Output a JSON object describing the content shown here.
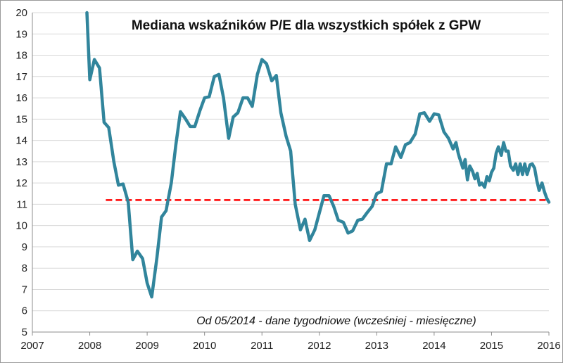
{
  "chart_data": {
    "type": "line",
    "title": "Mediana wskaźników P/E dla wszystkich spółek z GPW",
    "annotation": "Od 05/2014 - dane tygodniowe (wcześniej - miesięczne)",
    "xlabel": "",
    "ylabel": "",
    "xlim": [
      2007,
      2016
    ],
    "ylim": [
      5,
      20
    ],
    "x_ticks": [
      "2007",
      "2008",
      "2009",
      "2010",
      "2011",
      "2012",
      "2013",
      "2014",
      "2015",
      "2016"
    ],
    "y_ticks": [
      "5",
      "6",
      "7",
      "8",
      "9",
      "10",
      "11",
      "12",
      "13",
      "14",
      "15",
      "16",
      "17",
      "18",
      "19",
      "20"
    ],
    "grid": "horizontal",
    "colors": {
      "series": "#31859C",
      "reference": "#FF0000",
      "grid": "#D9D9D9"
    },
    "series": [
      {
        "x": [
          2007.95,
          2008.0,
          2008.08,
          2008.17,
          2008.25,
          2008.33,
          2008.42,
          2008.5,
          2008.58,
          2008.67,
          2008.75,
          2008.83,
          2008.92,
          2009.0,
          2009.08,
          2009.17,
          2009.25,
          2009.33,
          2009.42,
          2009.5,
          2009.58,
          2009.67,
          2009.75,
          2009.83,
          2009.92,
          2010.0,
          2010.08,
          2010.17,
          2010.25,
          2010.33,
          2010.42,
          2010.5,
          2010.58,
          2010.67,
          2010.75,
          2010.83,
          2010.92,
          2011.0,
          2011.08,
          2011.17,
          2011.25,
          2011.33,
          2011.42,
          2011.5,
          2011.58,
          2011.67,
          2011.75,
          2011.83,
          2011.92,
          2012.0,
          2012.08,
          2012.17,
          2012.25,
          2012.33,
          2012.42,
          2012.5,
          2012.58,
          2012.67,
          2012.75,
          2012.83,
          2012.92,
          2013.0,
          2013.08,
          2013.17,
          2013.25,
          2013.33,
          2013.42,
          2013.5,
          2013.58,
          2013.67,
          2013.75,
          2013.83,
          2013.92,
          2014.0,
          2014.08,
          2014.17,
          2014.25,
          2014.33,
          2014.38,
          2014.42,
          2014.44,
          2014.46,
          2014.5,
          2014.54,
          2014.58,
          2014.62,
          2014.67,
          2014.71,
          2014.75,
          2014.79,
          2014.83,
          2014.88,
          2014.92,
          2014.96,
          2015.0,
          2015.04,
          2015.08,
          2015.12,
          2015.17,
          2015.21,
          2015.25,
          2015.29,
          2015.33,
          2015.38,
          2015.42,
          2015.46,
          2015.5,
          2015.54,
          2015.58,
          2015.62,
          2015.67,
          2015.71,
          2015.75,
          2015.79,
          2015.83,
          2015.88,
          2015.92,
          2015.96,
          2016.0
        ],
        "values": [
          20.0,
          16.85,
          17.8,
          17.4,
          14.85,
          14.6,
          13.0,
          11.9,
          11.95,
          11.1,
          8.4,
          8.8,
          8.45,
          7.3,
          6.65,
          8.5,
          10.4,
          10.7,
          12.0,
          13.8,
          15.35,
          15.0,
          14.65,
          14.65,
          15.4,
          16.0,
          16.05,
          17.0,
          17.1,
          16.0,
          14.1,
          15.1,
          15.3,
          16.0,
          16.0,
          15.6,
          17.1,
          17.8,
          17.6,
          16.8,
          17.05,
          15.3,
          14.2,
          13.5,
          11.0,
          9.8,
          10.3,
          9.3,
          9.8,
          10.6,
          11.4,
          11.4,
          10.9,
          10.25,
          10.15,
          9.65,
          9.75,
          10.25,
          10.3,
          10.6,
          10.9,
          11.5,
          11.6,
          12.9,
          12.9,
          13.7,
          13.2,
          13.8,
          13.9,
          14.3,
          15.25,
          15.3,
          14.9,
          15.25,
          15.2,
          14.4,
          14.1,
          13.6,
          13.9,
          13.4,
          13.2,
          13.05,
          12.7,
          13.1,
          12.15,
          12.8,
          12.55,
          12.2,
          12.45,
          11.9,
          12.0,
          11.8,
          12.3,
          12.1,
          12.5,
          12.7,
          13.4,
          13.7,
          13.3,
          13.9,
          13.5,
          13.5,
          12.8,
          12.6,
          12.9,
          12.4,
          12.9,
          12.4,
          12.9,
          12.4,
          12.85,
          12.9,
          12.7,
          12.1,
          11.65,
          12.0,
          11.6,
          11.3,
          11.1
        ]
      },
      {
        "type": "reference-line",
        "x": [
          2008.28,
          2016.0
        ],
        "values": [
          11.2,
          11.2
        ]
      }
    ]
  }
}
